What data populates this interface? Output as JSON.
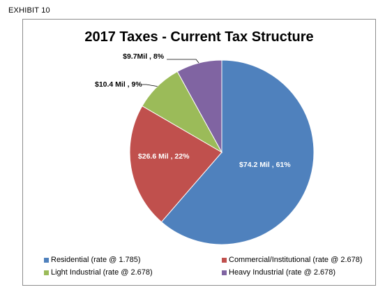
{
  "exhibit_label": "EXHIBIT 10",
  "chart_data": {
    "type": "pie",
    "title": "2017 Taxes - Current Tax Structure",
    "legend_position": "bottom",
    "slices": [
      {
        "name": "Residential (rate @ 1.785)",
        "value": 74.2,
        "percent": 61,
        "data_label": "$74.2 Mil , 61%",
        "color": "#4f81bd"
      },
      {
        "name": "Commercial/Institutional (rate @ 2.678)",
        "value": 26.6,
        "percent": 22,
        "data_label": "$26.6  Mil , 22%",
        "color": "#c0504d"
      },
      {
        "name": "Light Industrial (rate @ 2.678)",
        "value": 10.4,
        "percent": 9,
        "data_label": "$10.4 Mil , 9%",
        "color": "#9bbb59"
      },
      {
        "name": "Heavy Industrial (rate @ 2.678)",
        "value": 9.7,
        "percent": 8,
        "data_label": "$9.7Mil , 8%",
        "color": "#8064a2"
      }
    ]
  }
}
